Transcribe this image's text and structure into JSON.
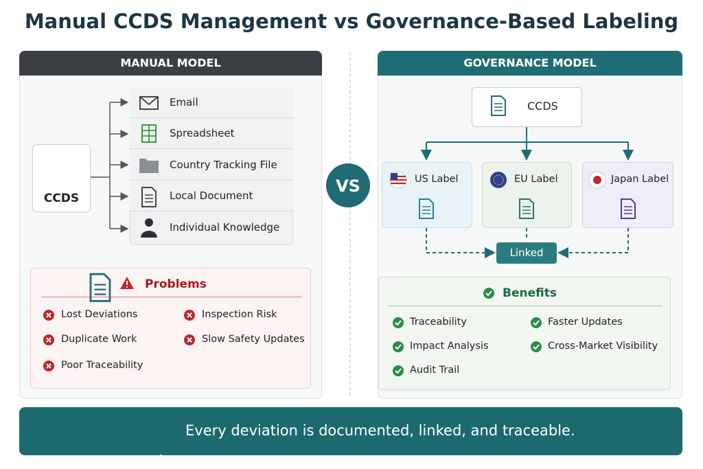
{
  "title": "Manual CCDS Management vs Governance-Based Labeling",
  "manual": {
    "header": "MANUAL MODEL",
    "source": "CCDS",
    "items": [
      "Email",
      "Spreadsheet",
      "Country Tracking File",
      "Local Document",
      "Individual Knowledge"
    ],
    "problems": {
      "title": "Problems",
      "items": [
        "Lost Deviations",
        "Inspection Risk",
        "Duplicate Work",
        "Slow Safety Updates",
        "Poor Traceability"
      ]
    }
  },
  "vs": "VS",
  "governance": {
    "header": "GOVERNANCE MODEL",
    "source": "CCDS",
    "labels": [
      "US Label",
      "EU Label",
      "Japan Label"
    ],
    "linked": "Linked",
    "benefits": {
      "title": "Benefits",
      "items": [
        "Traceability",
        "Faster Updates",
        "Impact Analysis",
        "Cross-Market Visibility",
        "Audit Trail"
      ]
    }
  },
  "footer": "Every deviation is documented, linked, and traceable."
}
